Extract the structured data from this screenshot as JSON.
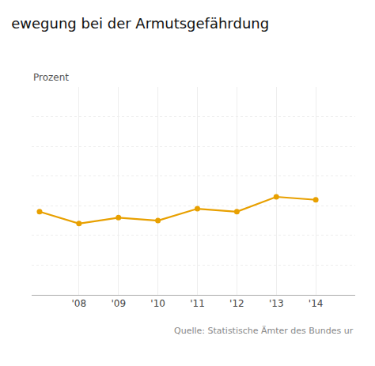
{
  "chart_data": {
    "type": "line",
    "title": "ewegung bei der Armutsgefährdung",
    "ylabel": "Prozent",
    "annotations": [
      "Quelle: Statistische Ämter des Bundes ur"
    ],
    "x": [
      2007,
      2008,
      2009,
      2010,
      2011,
      2012,
      2013,
      2014
    ],
    "values": [
      14.8,
      14.4,
      14.6,
      14.5,
      14.9,
      14.8,
      15.3,
      15.2
    ],
    "color": "#E8A000",
    "marker": "circle",
    "xlim": [
      2006.8,
      2015.0
    ],
    "xticks": [
      {
        "value": 2008,
        "label": "'08"
      },
      {
        "value": 2009,
        "label": "'09"
      },
      {
        "value": 2010,
        "label": "'10"
      },
      {
        "value": 2011,
        "label": "'11"
      },
      {
        "value": 2012,
        "label": "'12"
      },
      {
        "value": 2013,
        "label": "'13"
      },
      {
        "value": 2014,
        "label": "'14"
      }
    ],
    "ylim": [
      12.0,
      19.0
    ],
    "yticks": [
      12,
      13,
      14,
      15,
      16,
      17,
      18,
      19
    ],
    "grid": true,
    "tick_labels": "x"
  }
}
